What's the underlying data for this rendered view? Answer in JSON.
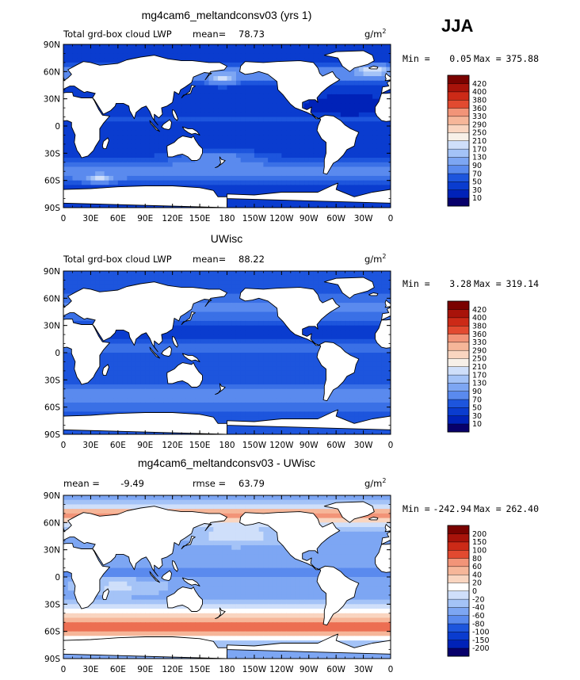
{
  "season": "JJA",
  "colors": {
    "lwp_scale": [
      "#08006b",
      "#0022b8",
      "#0a3ccf",
      "#1d55dd",
      "#3a70e6",
      "#5a8aee",
      "#7da6f3",
      "#a4c3f7",
      "#cfdffa",
      "#f7f0e8",
      "#f9d5c0",
      "#f6b699",
      "#f29478",
      "#ec6e52",
      "#e24a30",
      "#cc2a17",
      "#a8130a",
      "#7a0200"
    ],
    "diff_scale": [
      "#08006b",
      "#0022b8",
      "#0a3ccf",
      "#1d55dd",
      "#3a70e6",
      "#5a8aee",
      "#7da6f3",
      "#a4c3f7",
      "#cfdffa",
      "#ffffff",
      "#f9d5c0",
      "#f6b699",
      "#f29478",
      "#ec6e52",
      "#e24a30",
      "#cc2a17",
      "#a8130a",
      "#7a0200"
    ],
    "land": "#ffffff"
  },
  "chart_data": [
    {
      "type": "heatmap",
      "title": "mg4cam6_meltandconsv03 (yrs 1)",
      "left_label": "Total grd-box cloud LWP",
      "stat_label": "mean=",
      "stat_value": "78.73",
      "units_base": "g/m",
      "units_exp": "2",
      "range_min_label": "Min =",
      "range_min": "0.05",
      "range_max_label": "Max =",
      "range_max": "375.88",
      "colorbar_levels": [
        "10",
        "30",
        "50",
        "70",
        "90",
        "130",
        "170",
        "210",
        "250",
        "290",
        "330",
        "360",
        "380",
        "400",
        "420"
      ],
      "x_ticks": [
        "0",
        "30E",
        "60E",
        "90E",
        "120E",
        "150E",
        "180",
        "150W",
        "120W",
        "90W",
        "60W",
        "30W",
        "0"
      ],
      "y_ticks": [
        "90N",
        "60N",
        "30N",
        "0",
        "30S",
        "60S",
        "90S"
      ],
      "field": "lwp_a"
    },
    {
      "type": "heatmap",
      "title": "UWisc",
      "left_label": "Total grd-box cloud LWP",
      "stat_label": "mean=",
      "stat_value": "88.22",
      "units_base": "g/m",
      "units_exp": "2",
      "range_min_label": "Min =",
      "range_min": "3.28",
      "range_max_label": "Max =",
      "range_max": "319.14",
      "colorbar_levels": [
        "10",
        "30",
        "50",
        "70",
        "90",
        "130",
        "170",
        "210",
        "250",
        "290",
        "330",
        "360",
        "380",
        "400",
        "420"
      ],
      "x_ticks": [
        "0",
        "30E",
        "60E",
        "90E",
        "120E",
        "150E",
        "180",
        "150W",
        "120W",
        "90W",
        "60W",
        "30W",
        "0"
      ],
      "y_ticks": [
        "90N",
        "60N",
        "30N",
        "0",
        "30S",
        "60S",
        "90S"
      ],
      "field": "lwp_b"
    },
    {
      "type": "heatmap",
      "title": "mg4cam6_meltandconsv03 - UWisc",
      "left_label": "",
      "stat_label": "mean =",
      "stat_value": "-9.49",
      "rmse_label": "rmse =",
      "rmse_value": "63.79",
      "units_base": "g/m",
      "units_exp": "2",
      "range_min_label": "Min =",
      "range_min": "-242.94",
      "range_max_label": "Max =",
      "range_max": "262.40",
      "colorbar_levels": [
        "-200",
        "-150",
        "-100",
        "-80",
        "-60",
        "-40",
        "-20",
        "0",
        "20",
        "40",
        "60",
        "80",
        "100",
        "150",
        "200"
      ],
      "x_ticks": [
        "0",
        "30E",
        "60E",
        "90E",
        "120E",
        "150E",
        "180",
        "150W",
        "120W",
        "90W",
        "60W",
        "30W",
        "0"
      ],
      "y_ticks": [
        "90N",
        "60N",
        "30N",
        "0",
        "30S",
        "60S",
        "90S"
      ],
      "field": "diff"
    }
  ]
}
